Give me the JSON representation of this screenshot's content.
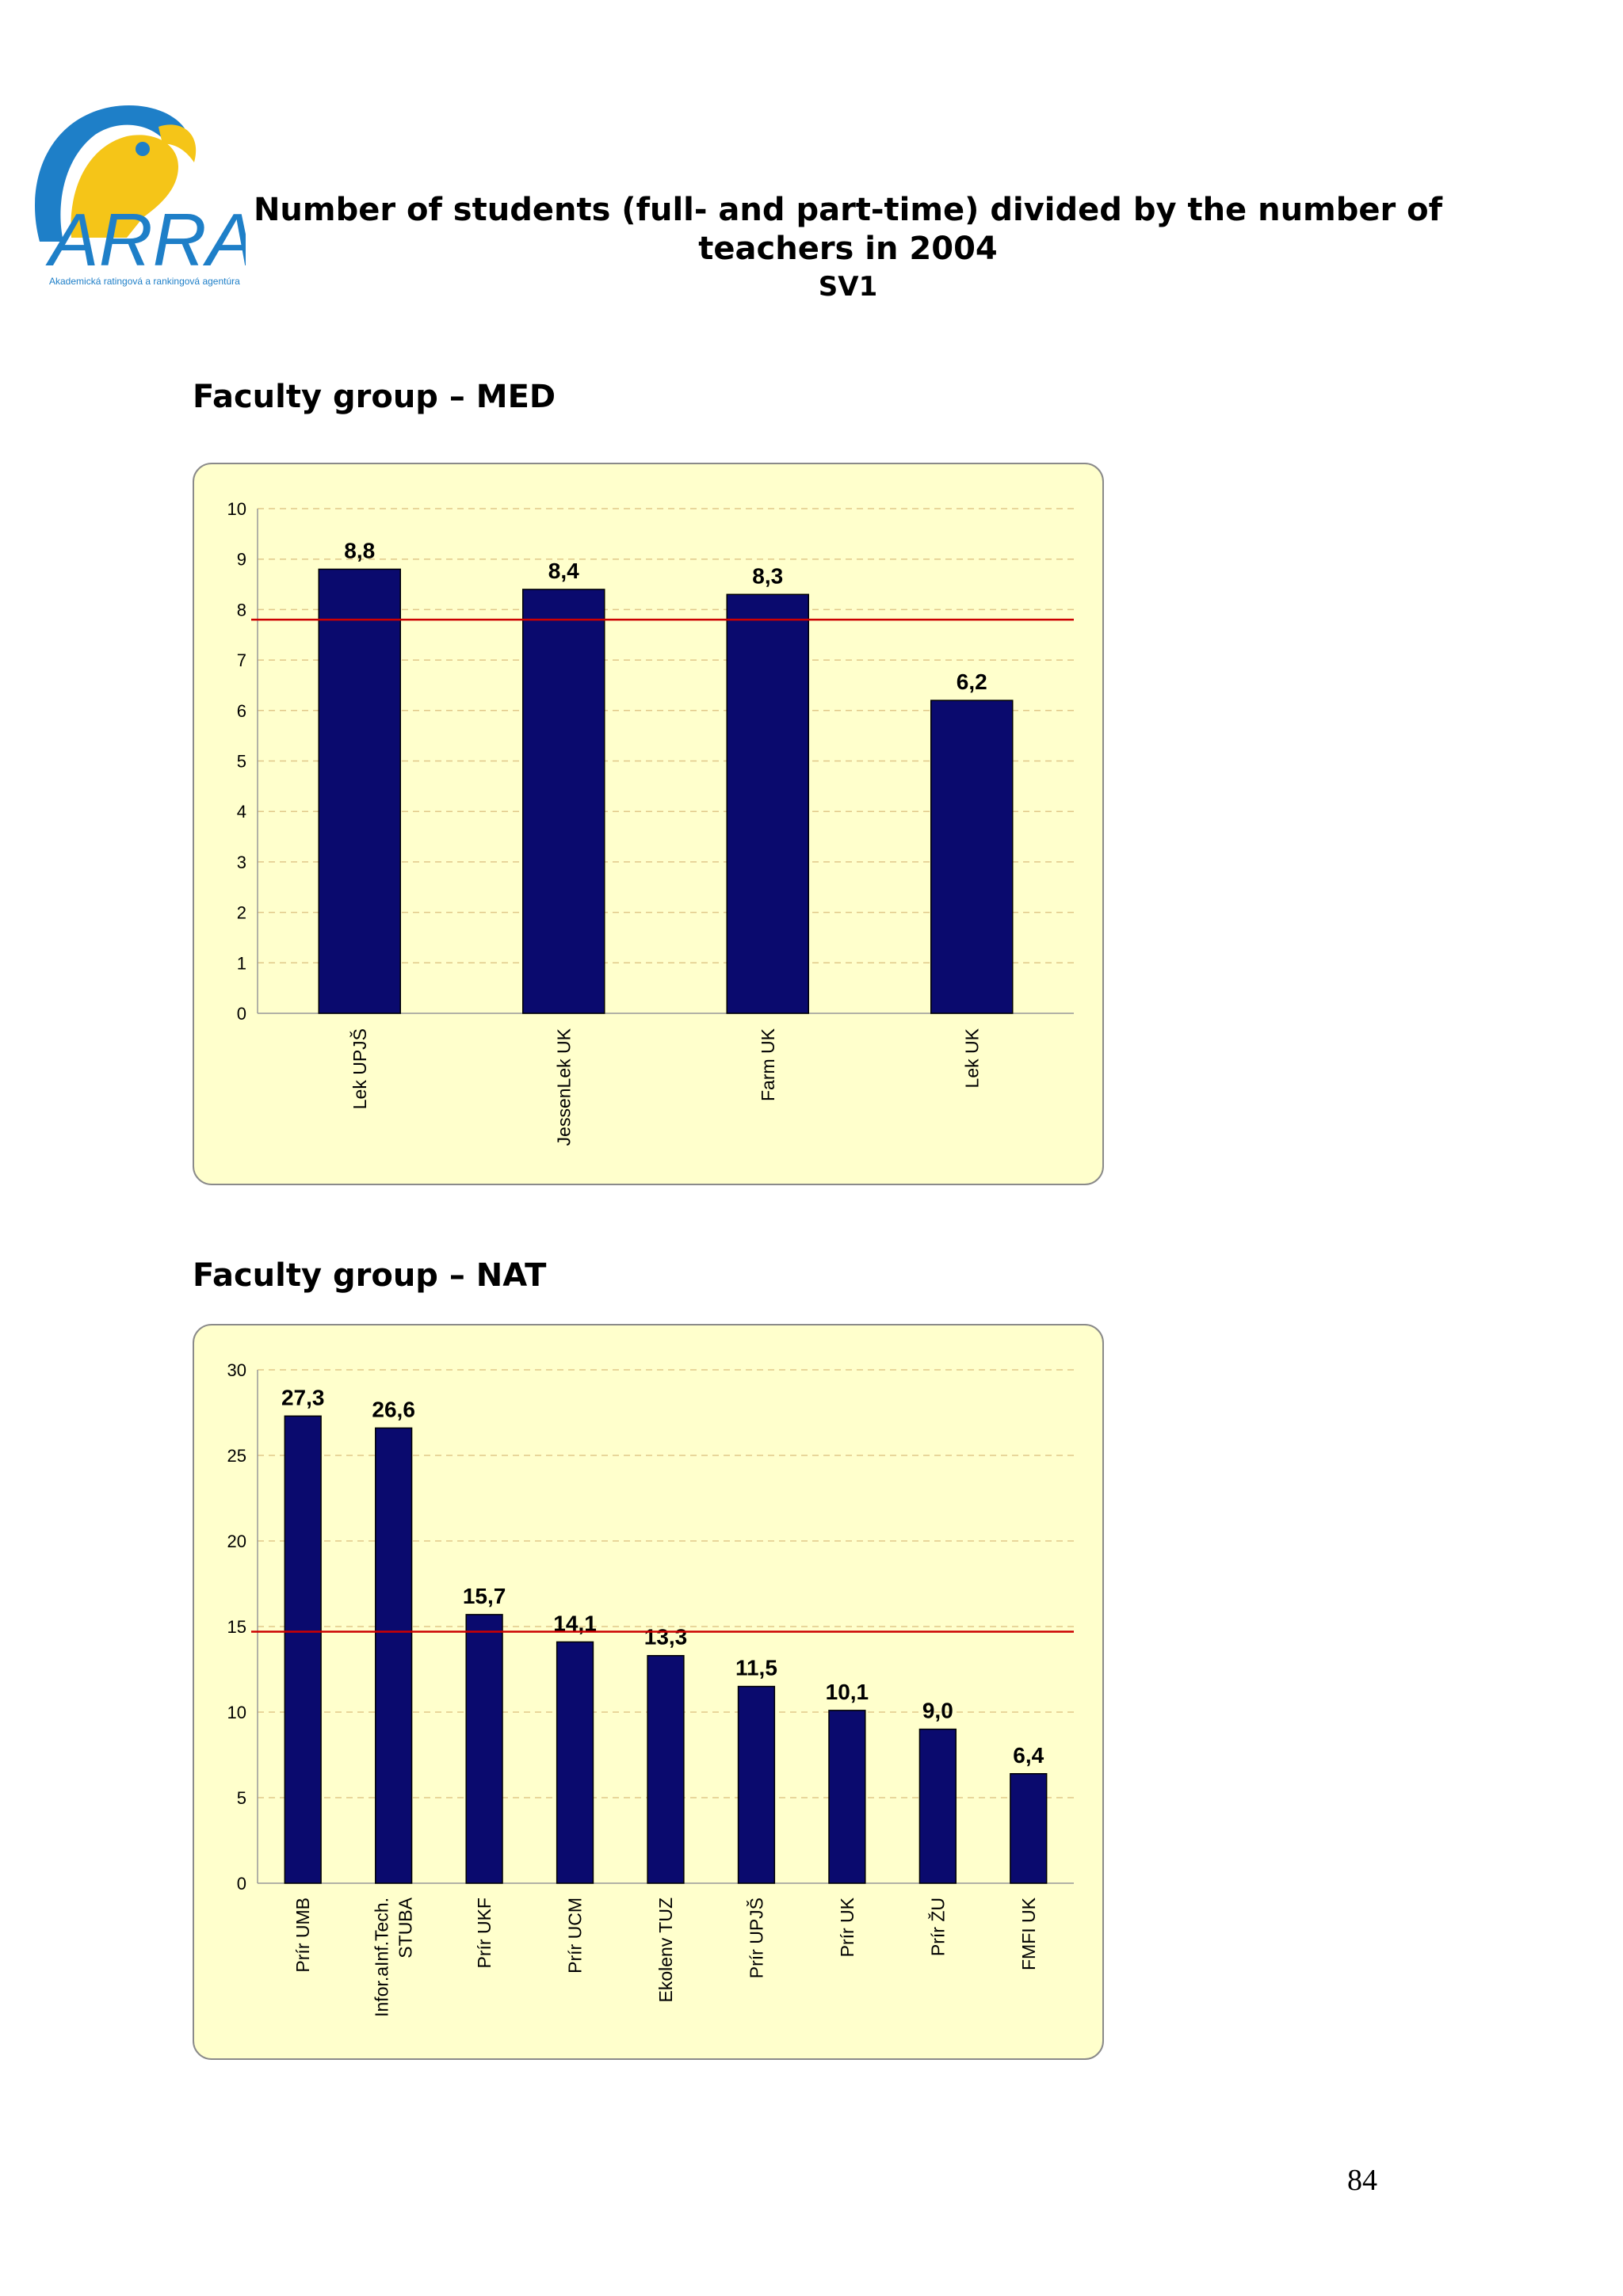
{
  "logo": {
    "text": "ARRA",
    "tagline": "Akademická ratingová a rankingová agentúra",
    "colors": {
      "blue": "#1e7fc8",
      "yellow": "#f5c518"
    }
  },
  "title": {
    "line1": "Number of students (full- and part-time) divided by the number of",
    "line2": "teachers in 2004",
    "line3": "SV1"
  },
  "sections": {
    "med_heading": "Faculty group – MED",
    "nat_heading": "Faculty group – NAT"
  },
  "colors": {
    "bar": "#0a0a6e",
    "reference_line": "#cc0000",
    "chart_bg": "#ffffcc",
    "grid": "#e0c88a"
  },
  "chart_data": [
    {
      "id": "med",
      "type": "bar",
      "categories": [
        "Lek UPJŠ",
        "JessenLek UK",
        "Farm UK",
        "Lek UK"
      ],
      "category_lines": [
        [
          "Lek UPJŠ"
        ],
        [
          "JessenLek UK"
        ],
        [
          "Farm UK"
        ],
        [
          "Lek UK"
        ]
      ],
      "values": [
        8.8,
        8.4,
        8.3,
        6.2
      ],
      "value_labels": [
        "8,8",
        "8,4",
        "8,3",
        "6,2"
      ],
      "yticks": [
        "0",
        "1",
        "2",
        "3",
        "4",
        "5",
        "6",
        "7",
        "8",
        "9",
        "10"
      ],
      "ylim": [
        0,
        10
      ],
      "ystep": 1,
      "reference_line": 7.8,
      "grid": true,
      "title": "",
      "xlabel": "",
      "ylabel": ""
    },
    {
      "id": "nat",
      "type": "bar",
      "categories": [
        "Prír UMB",
        "Infor.aInf.Tech. STUBA",
        "Prír UKF",
        "Prír UCM",
        "Ekolenv TUZ",
        "Prír UPJŠ",
        "Prír UK",
        "Prír ŽU",
        "FMFI UK"
      ],
      "category_lines": [
        [
          "Prír UMB"
        ],
        [
          "Infor.aInf.Tech.",
          "STUBA"
        ],
        [
          "Prír UKF"
        ],
        [
          "Prír UCM"
        ],
        [
          "Ekolenv TUZ"
        ],
        [
          "Prír UPJŠ"
        ],
        [
          "Prír UK"
        ],
        [
          "Prír ŽU"
        ],
        [
          "FMFI UK"
        ]
      ],
      "values": [
        27.3,
        26.6,
        15.7,
        14.1,
        13.3,
        11.5,
        10.1,
        9.0,
        6.4
      ],
      "value_labels": [
        "27,3",
        "26,6",
        "15,7",
        "14,1",
        "13,3",
        "11,5",
        "10,1",
        "9,0",
        "6,4"
      ],
      "yticks": [
        "0",
        "5",
        "10",
        "15",
        "20",
        "25",
        "30"
      ],
      "ylim": [
        0,
        30
      ],
      "ystep": 5,
      "reference_line": 14.7,
      "grid": true,
      "title": "",
      "xlabel": "",
      "ylabel": ""
    }
  ],
  "page_number": "84"
}
